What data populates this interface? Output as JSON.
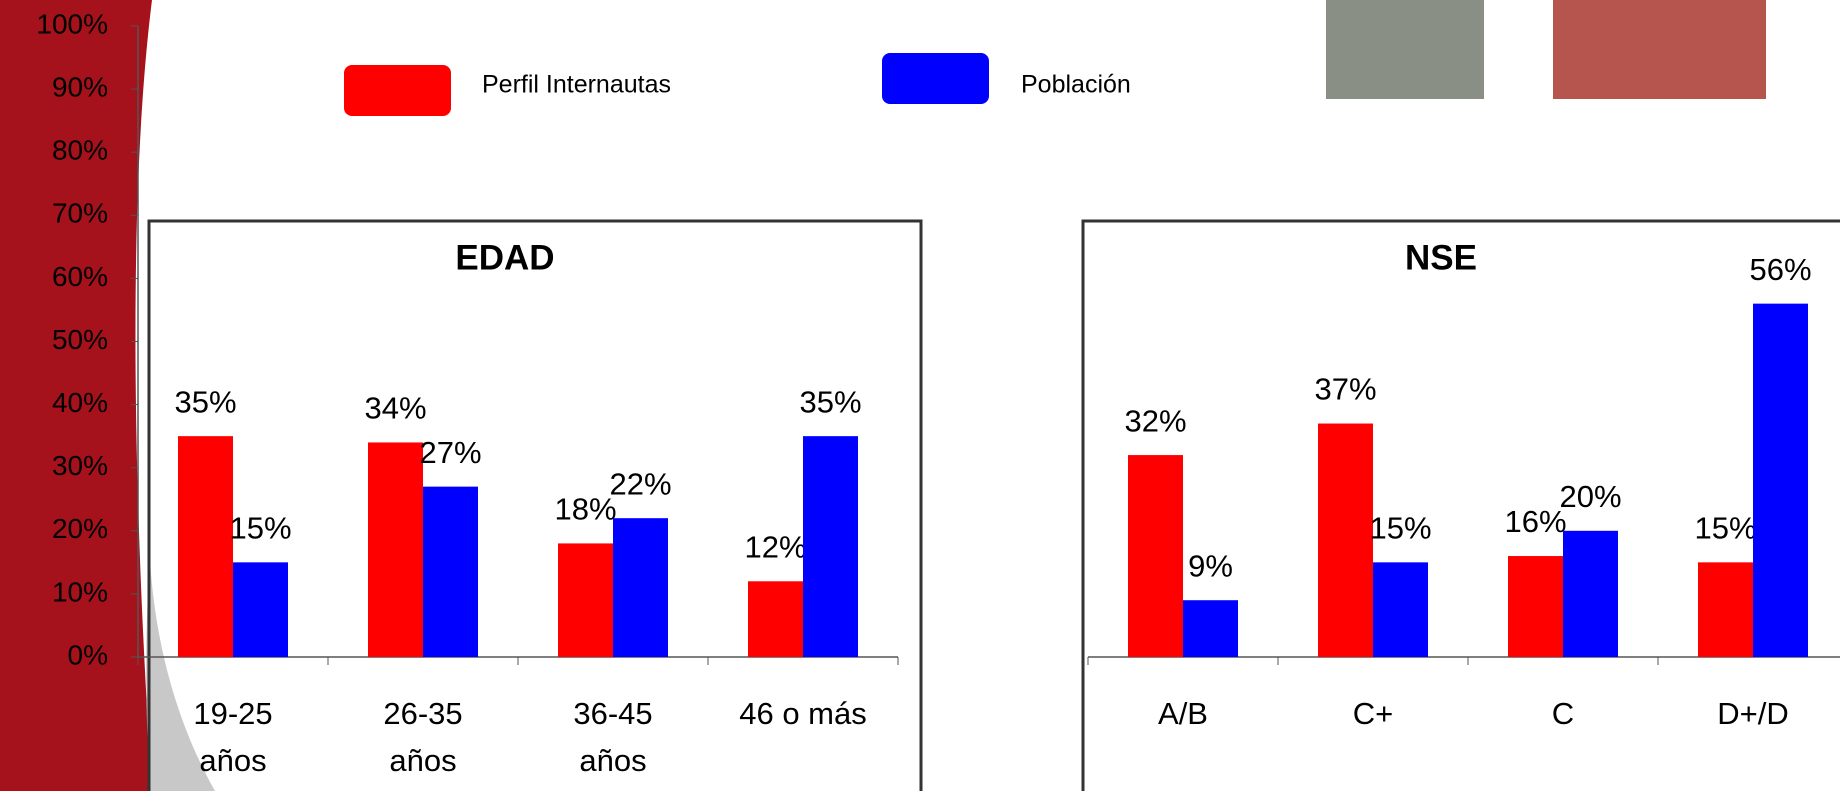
{
  "chart_data": {
    "type": "bar",
    "ylim": [
      0,
      100
    ],
    "yticks": [
      {
        "value": 0,
        "label": "0%"
      },
      {
        "value": 10,
        "label": "10%"
      },
      {
        "value": 20,
        "label": "20%"
      },
      {
        "value": 30,
        "label": "30%"
      },
      {
        "value": 40,
        "label": "40%"
      },
      {
        "value": 50,
        "label": "50%"
      },
      {
        "value": 60,
        "label": "60%"
      },
      {
        "value": 70,
        "label": "70%"
      },
      {
        "value": 80,
        "label": "80%"
      },
      {
        "value": 90,
        "label": "90%"
      },
      {
        "value": 100,
        "label": "100%"
      }
    ],
    "series": [
      {
        "name": "Perfil Internautas",
        "color": "#ff0000"
      },
      {
        "name": "Población",
        "color": "#0000ff"
      }
    ],
    "panels": [
      {
        "title": "EDAD",
        "categories": [
          "19-25\naños",
          "26-35\naños",
          "36-45\naños",
          "46 o más"
        ],
        "series": [
          {
            "values": [
              35,
              34,
              18,
              12
            ],
            "value_labels": [
              "35%",
              "34%",
              "18%",
              "12%"
            ]
          },
          {
            "values": [
              15,
              27,
              22,
              35
            ],
            "value_labels": [
              "15%",
              "27%",
              "22%",
              "35%"
            ]
          }
        ]
      },
      {
        "title": "NSE",
        "categories": [
          "A/B",
          "C+",
          "C",
          "D+/D"
        ],
        "series": [
          {
            "values": [
              32,
              37,
              16,
              15
            ],
            "value_labels": [
              "32%",
              "37%",
              "16%",
              "15%"
            ]
          },
          {
            "values": [
              9,
              15,
              20,
              56
            ],
            "value_labels": [
              "9%",
              "15%",
              "20%",
              "56%"
            ]
          }
        ]
      }
    ]
  }
}
